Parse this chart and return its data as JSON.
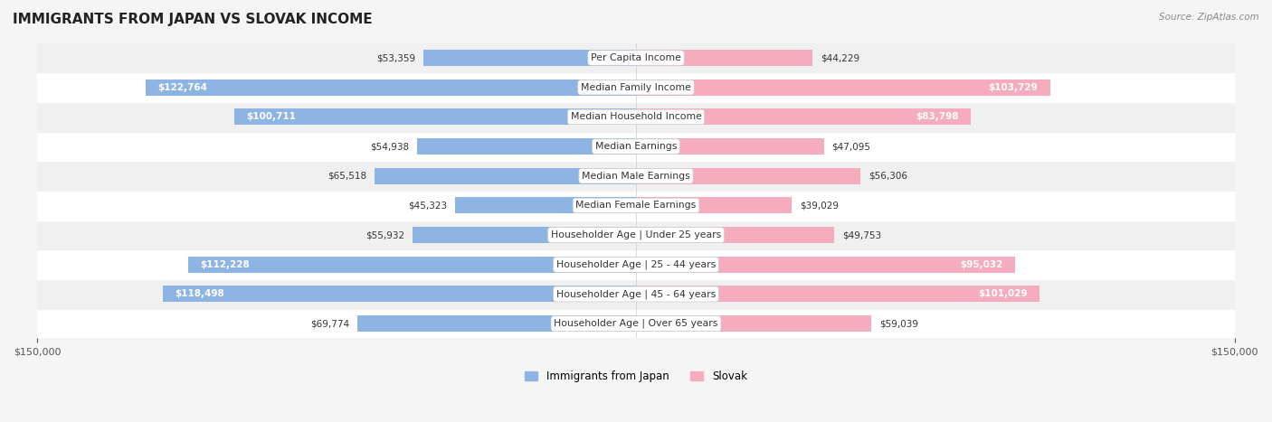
{
  "title": "IMMIGRANTS FROM JAPAN VS SLOVAK INCOME",
  "source": "Source: ZipAtlas.com",
  "categories": [
    "Per Capita Income",
    "Median Family Income",
    "Median Household Income",
    "Median Earnings",
    "Median Male Earnings",
    "Median Female Earnings",
    "Householder Age | Under 25 years",
    "Householder Age | 25 - 44 years",
    "Householder Age | 45 - 64 years",
    "Householder Age | Over 65 years"
  ],
  "japan_values": [
    53359,
    122764,
    100711,
    54938,
    65518,
    45323,
    55932,
    112228,
    118498,
    69774
  ],
  "slovak_values": [
    44229,
    103729,
    83798,
    47095,
    56306,
    39029,
    49753,
    95032,
    101029,
    59039
  ],
  "japan_labels": [
    "$53,359",
    "$122,764",
    "$100,711",
    "$54,938",
    "$65,518",
    "$45,323",
    "$55,932",
    "$112,228",
    "$118,498",
    "$69,774"
  ],
  "slovak_labels": [
    "$44,229",
    "$103,729",
    "$83,798",
    "$47,095",
    "$56,306",
    "$39,029",
    "$49,753",
    "$95,032",
    "$101,029",
    "$59,039"
  ],
  "japan_color": "#8EB4E3",
  "japan_color_dark": "#5B9BD5",
  "slovak_color": "#F4ACBE",
  "slovak_color_dark": "#E8729A",
  "max_value": 150000,
  "background_color": "#f5f5f5",
  "row_bg_light": "#f9f9f9",
  "row_bg_dark": "#eeeeee",
  "legend_japan": "Immigrants from Japan",
  "legend_slovak": "Slovak"
}
